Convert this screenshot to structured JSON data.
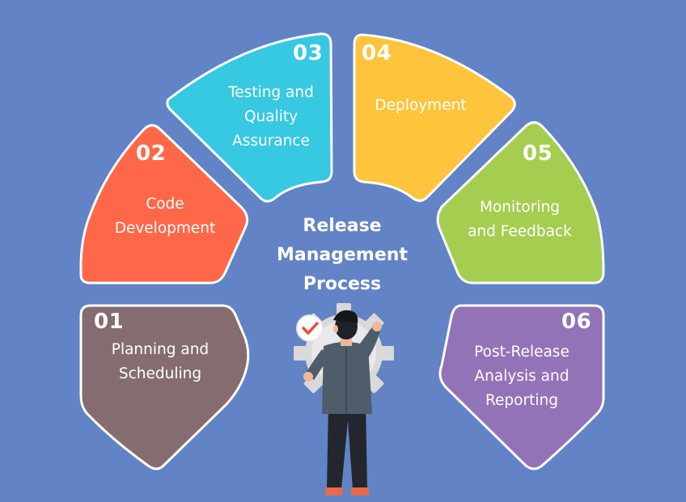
{
  "title": "Release\nManagement\nProcess",
  "steps": [
    {
      "number": "01",
      "label": "Planning and\nScheduling",
      "color": "#856d6f"
    },
    {
      "number": "02",
      "label": "Code\nDevelopment",
      "color": "#fe6849"
    },
    {
      "number": "03",
      "label": "Testing and\nQuality\nAssurance",
      "color": "#37c8e2"
    },
    {
      "number": "04",
      "label": "Deployment",
      "color": "#fdc43c"
    },
    {
      "number": "05",
      "label": "Monitoring\nand Feedback",
      "color": "#a5cd50"
    },
    {
      "number": "06",
      "label": "Post-Release\nAnalysis and\nReporting",
      "color": "#9373b8"
    }
  ],
  "colors": {
    "background": "#6283c5",
    "outline": "#ffffff"
  },
  "icons": {
    "person": "person-icon",
    "gear": "gear-icon",
    "check": "checkmark-badge-icon"
  }
}
